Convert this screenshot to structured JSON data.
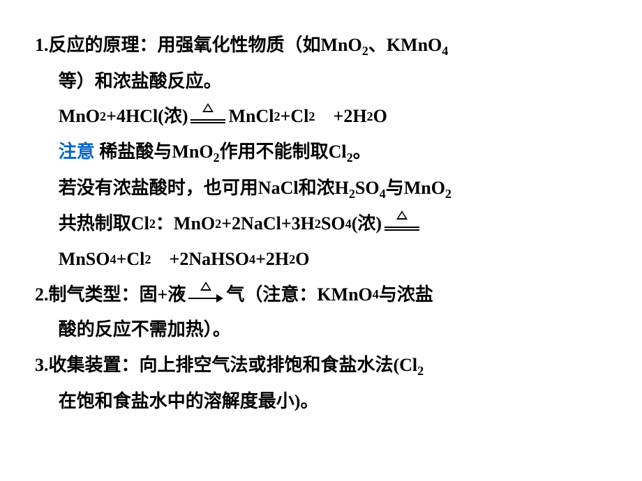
{
  "item1": {
    "title": "1.反应的原理：用强氧化性物质（如MnO",
    "title2": "、KMnO",
    "title3_indent": "等）和浓盐酸反应。",
    "eq1_lhs": "MnO",
    "eq1_mid": "+4HCl(浓)",
    "eq1_rhs1": "MnCl",
    "eq1_rhs2": "+Cl",
    "eq1_rhs3": "+2H",
    "eq1_rhs4": "O",
    "note_label": "注意",
    "note_text1": " 稀盐酸与MnO",
    "note_text2": "作用不能制取Cl",
    "note_text3": "。",
    "alt1": "若没有浓盐酸时，也可用NaCl和浓H",
    "alt2": "SO",
    "alt3": "与MnO",
    "alt4": "共热制取Cl",
    "alt5": "：MnO",
    "alt6": "+2NaCl+3H",
    "alt7": "SO",
    "alt8": "(浓)",
    "prod1": "MnSO",
    "prod2": "+Cl",
    "prod3": "+2NaHSO",
    "prod4": "+2H",
    "prod5": "O"
  },
  "item2": {
    "text1": "2.制气类型：固+液",
    "text2": "气（注意：KMnO",
    "text3": "与浓盐",
    "text4": "酸的反应不需加热）。"
  },
  "item3": {
    "text1": "3.收集装置：向上排空气法或排饱和食盐水法(Cl",
    "text2": "在饱和食盐水中的溶解度最小)。"
  },
  "colors": {
    "text": "#000000",
    "note": "#0066cc",
    "background": "#ffffff"
  },
  "typography": {
    "base_fontsize": 26,
    "line_height": 1.95,
    "font_family": "SimSun",
    "font_weight": "bold"
  }
}
